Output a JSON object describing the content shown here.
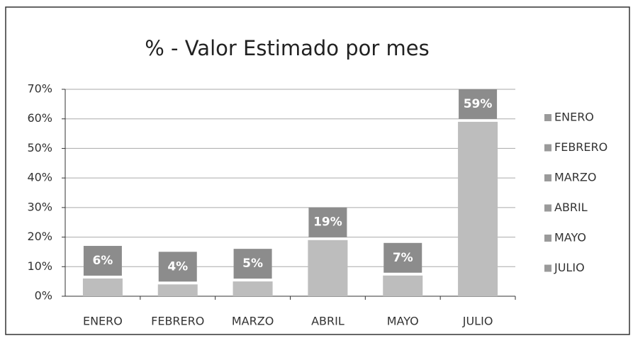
{
  "chart_data": {
    "type": "bar",
    "title": "% - Valor Estimado por mes",
    "categories": [
      "ENERO",
      "FEBRERO",
      "MARZO",
      "ABRIL",
      "MAYO",
      "JULIO"
    ],
    "values": [
      6,
      4,
      5,
      19,
      7,
      59
    ],
    "value_labels": [
      "6%",
      "4%",
      "5%",
      "19%",
      "7%",
      "59%"
    ],
    "color": "#bdbdbd",
    "ylim": [
      0,
      70
    ],
    "yticks": [
      {
        "value": 0,
        "label": "0%"
      },
      {
        "value": 10,
        "label": "10%"
      },
      {
        "value": 20,
        "label": "20%"
      },
      {
        "value": 30,
        "label": "30%"
      },
      {
        "value": 40,
        "label": "40%"
      },
      {
        "value": 50,
        "label": "50%"
      },
      {
        "value": 60,
        "label": "60%"
      },
      {
        "value": 70,
        "label": "70%"
      }
    ],
    "grid": true,
    "legend": "right"
  }
}
